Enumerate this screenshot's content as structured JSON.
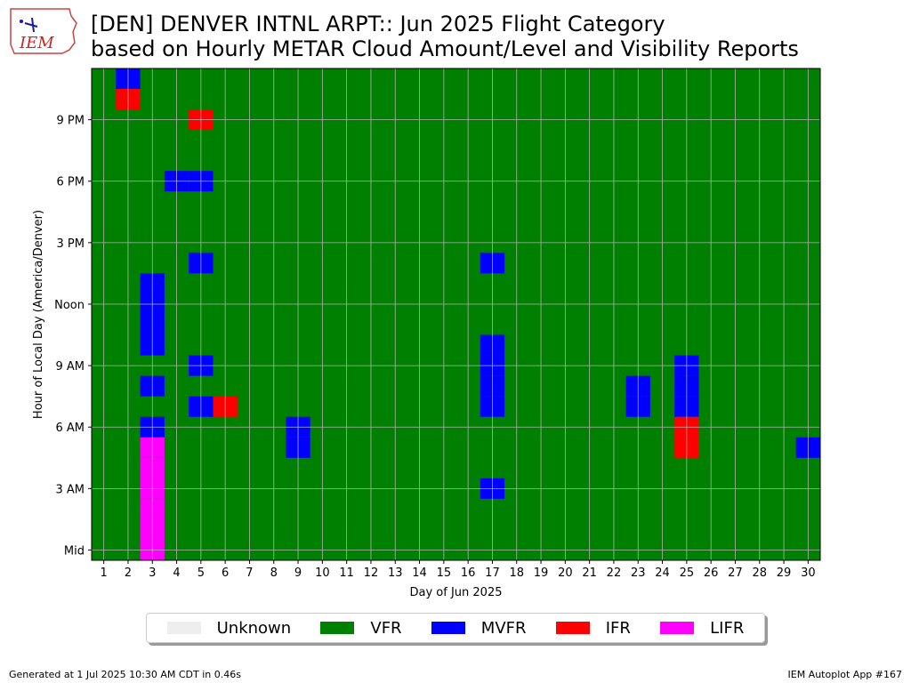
{
  "header": {
    "logo_text": "IEM",
    "title_line1": "[DEN] DENVER INTNL ARPT:: Jun 2025 Flight Category",
    "title_line2": "based on Hourly METAR Cloud Amount/Level and Visibility Reports"
  },
  "footer": {
    "generated": "Generated at 1 Jul 2025 10:30 AM CDT in 0.46s",
    "app": "IEM Autoplot App #167"
  },
  "colors": {
    "Unknown": "#eeeeee",
    "VFR": "#008000",
    "MVFR": "#0000ff",
    "IFR": "#ff0000",
    "LIFR": "#ff00ff"
  },
  "chart_data": {
    "type": "heatmap",
    "title": "[DEN] DENVER INTNL ARPT:: Jun 2025 Flight Category based on Hourly METAR Cloud Amount/Level and Visibility Reports",
    "xlabel": "Day of Jun 2025",
    "ylabel": "Hour of Local Day (America/Denver)",
    "x_ticks": [
      1,
      2,
      3,
      4,
      5,
      6,
      7,
      8,
      9,
      10,
      11,
      12,
      13,
      14,
      15,
      16,
      17,
      18,
      19,
      20,
      21,
      22,
      23,
      24,
      25,
      26,
      27,
      28,
      29,
      30
    ],
    "y_ticks": [
      {
        "hour": 0,
        "label": "Mid"
      },
      {
        "hour": 3,
        "label": "3 AM"
      },
      {
        "hour": 6,
        "label": "6 AM"
      },
      {
        "hour": 9,
        "label": "9 AM"
      },
      {
        "hour": 12,
        "label": "Noon"
      },
      {
        "hour": 15,
        "label": "3 PM"
      },
      {
        "hour": 18,
        "label": "6 PM"
      },
      {
        "hour": 21,
        "label": "9 PM"
      }
    ],
    "xlim": [
      0.5,
      30.5
    ],
    "ylim": [
      -0.5,
      23.5
    ],
    "grid": true,
    "legend_position": "bottom-center",
    "categories": [
      "Unknown",
      "VFR",
      "MVFR",
      "IFR",
      "LIFR"
    ],
    "default_category": "VFR",
    "cells": [
      {
        "day": 2,
        "hour": 23,
        "category": "MVFR"
      },
      {
        "day": 2,
        "hour": 22,
        "category": "IFR"
      },
      {
        "day": 5,
        "hour": 21,
        "category": "IFR"
      },
      {
        "day": 4,
        "hour": 18,
        "category": "MVFR"
      },
      {
        "day": 5,
        "hour": 18,
        "category": "MVFR"
      },
      {
        "day": 5,
        "hour": 14,
        "category": "MVFR"
      },
      {
        "day": 17,
        "hour": 14,
        "category": "MVFR"
      },
      {
        "day": 3,
        "hour": 13,
        "category": "MVFR"
      },
      {
        "day": 3,
        "hour": 12,
        "category": "MVFR"
      },
      {
        "day": 3,
        "hour": 11,
        "category": "MVFR"
      },
      {
        "day": 3,
        "hour": 10,
        "category": "MVFR"
      },
      {
        "day": 17,
        "hour": 10,
        "category": "MVFR"
      },
      {
        "day": 17,
        "hour": 9,
        "category": "MVFR"
      },
      {
        "day": 5,
        "hour": 9,
        "category": "MVFR"
      },
      {
        "day": 25,
        "hour": 9,
        "category": "MVFR"
      },
      {
        "day": 3,
        "hour": 8,
        "category": "MVFR"
      },
      {
        "day": 17,
        "hour": 8,
        "category": "MVFR"
      },
      {
        "day": 23,
        "hour": 8,
        "category": "MVFR"
      },
      {
        "day": 25,
        "hour": 8,
        "category": "MVFR"
      },
      {
        "day": 5,
        "hour": 7,
        "category": "MVFR"
      },
      {
        "day": 6,
        "hour": 7,
        "category": "IFR"
      },
      {
        "day": 17,
        "hour": 7,
        "category": "MVFR"
      },
      {
        "day": 23,
        "hour": 7,
        "category": "MVFR"
      },
      {
        "day": 25,
        "hour": 7,
        "category": "MVFR"
      },
      {
        "day": 3,
        "hour": 6,
        "category": "MVFR"
      },
      {
        "day": 9,
        "hour": 6,
        "category": "MVFR"
      },
      {
        "day": 25,
        "hour": 6,
        "category": "IFR"
      },
      {
        "day": 3,
        "hour": 5,
        "category": "LIFR"
      },
      {
        "day": 9,
        "hour": 5,
        "category": "MVFR"
      },
      {
        "day": 25,
        "hour": 5,
        "category": "IFR"
      },
      {
        "day": 30,
        "hour": 5,
        "category": "MVFR"
      },
      {
        "day": 3,
        "hour": 4,
        "category": "LIFR"
      },
      {
        "day": 3,
        "hour": 3,
        "category": "LIFR"
      },
      {
        "day": 17,
        "hour": 3,
        "category": "MVFR"
      },
      {
        "day": 3,
        "hour": 2,
        "category": "LIFR"
      },
      {
        "day": 3,
        "hour": 1,
        "category": "LIFR"
      },
      {
        "day": 3,
        "hour": 0,
        "category": "LIFR"
      }
    ]
  }
}
